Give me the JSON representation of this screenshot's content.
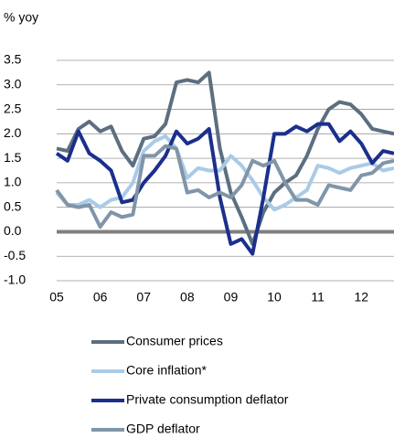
{
  "chart_data": {
    "type": "line",
    "y_label": "% yoy",
    "x": [
      5,
      5.25,
      5.5,
      5.75,
      6,
      6.25,
      6.5,
      6.75,
      7,
      7.25,
      7.5,
      7.75,
      8,
      8.25,
      8.5,
      8.75,
      9,
      9.25,
      9.5,
      9.75,
      10,
      10.25,
      10.5,
      10.75,
      11,
      11.25,
      11.5,
      11.75,
      12,
      12.25,
      12.5,
      12.75
    ],
    "xlim": [
      5,
      12.75
    ],
    "xticks": [
      {
        "value": 5,
        "label": "05"
      },
      {
        "value": 6,
        "label": "06"
      },
      {
        "value": 7,
        "label": "07"
      },
      {
        "value": 8,
        "label": "08"
      },
      {
        "value": 9,
        "label": "09"
      },
      {
        "value": 10,
        "label": "10"
      },
      {
        "value": 11,
        "label": "11"
      },
      {
        "value": 12,
        "label": "12"
      }
    ],
    "ylim": [
      -1,
      3.5
    ],
    "yticks": [
      {
        "value": -1,
        "label": "-1.0"
      },
      -0.5,
      {
        "value": 0,
        "label": "0.0"
      },
      0.5,
      {
        "value": 1,
        "label": "1.0"
      },
      1.5,
      {
        "value": 2,
        "label": "2.0"
      },
      2.5,
      {
        "value": 3,
        "label": "3.0"
      },
      3.5
    ],
    "grid": true,
    "series": [
      {
        "name": "Consumer prices",
        "color": "#5b6f80",
        "values": [
          1.7,
          1.65,
          2.1,
          2.25,
          2.05,
          2.15,
          1.65,
          1.35,
          1.9,
          1.95,
          2.2,
          3.05,
          3.1,
          3.05,
          3.25,
          1.7,
          0.8,
          0.3,
          -0.25,
          0.4,
          0.8,
          1.0,
          1.15,
          1.55,
          2.1,
          2.5,
          2.65,
          2.6,
          2.4,
          2.1,
          2.05,
          2.0
        ]
      },
      {
        "name": "Core inflation*",
        "color": "#a9cbe8",
        "values": [
          0.8,
          0.55,
          0.55,
          0.65,
          0.5,
          0.65,
          0.7,
          1.0,
          1.65,
          1.85,
          1.95,
          1.7,
          1.1,
          1.3,
          1.25,
          1.25,
          1.55,
          1.35,
          1.05,
          0.7,
          0.45,
          0.55,
          0.7,
          0.85,
          1.35,
          1.3,
          1.2,
          1.3,
          1.35,
          1.4,
          1.25,
          1.3
        ]
      },
      {
        "name": "Private consumption deflator",
        "color": "#1b2f8c",
        "values": [
          1.6,
          1.45,
          2.05,
          1.6,
          1.45,
          1.25,
          0.6,
          0.65,
          1.0,
          1.25,
          1.55,
          2.05,
          1.8,
          1.9,
          2.1,
          0.7,
          -0.25,
          -0.15,
          -0.45,
          0.7,
          2.0,
          2.0,
          2.15,
          2.05,
          2.2,
          2.2,
          1.85,
          2.05,
          1.8,
          1.4,
          1.65,
          1.6
        ]
      },
      {
        "name": "GDP deflator",
        "color": "#8095a8",
        "values": [
          0.85,
          0.55,
          0.5,
          0.55,
          0.1,
          0.4,
          0.3,
          0.35,
          1.55,
          1.55,
          1.75,
          1.7,
          0.8,
          0.85,
          0.7,
          0.8,
          0.7,
          0.95,
          1.45,
          1.35,
          1.45,
          1.0,
          0.65,
          0.65,
          0.55,
          0.95,
          0.9,
          0.85,
          1.15,
          1.2,
          1.4,
          1.45
        ]
      }
    ]
  }
}
